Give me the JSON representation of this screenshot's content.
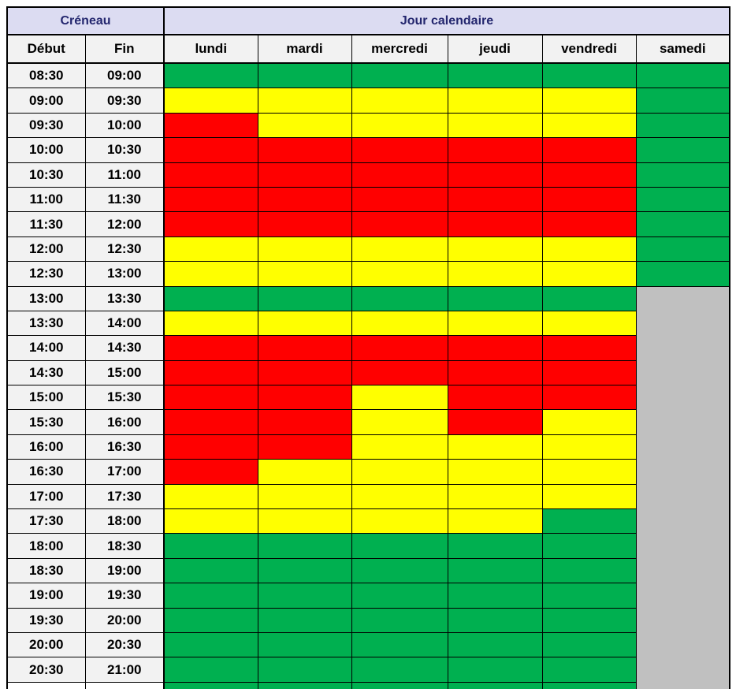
{
  "header": {
    "creneau": "Créneau",
    "jour": "Jour calendaire"
  },
  "subheader": {
    "debut": "Début",
    "fin": "Fin"
  },
  "palette": {
    "header_bg": "#dcdcf2",
    "label_bg": "#f2f2f2",
    "title_text": "#23266e",
    "text": "#000000",
    "border": "#000000"
  },
  "chart_data": {
    "type": "heatmap",
    "title": "Jour calendaire / Créneau availability grid",
    "x_categories": [
      "lundi",
      "mardi",
      "mercredi",
      "jeudi",
      "vendredi",
      "samedi"
    ],
    "y_slots": [
      {
        "debut": "08:30",
        "fin": "09:00"
      },
      {
        "debut": "09:00",
        "fin": "09:30"
      },
      {
        "debut": "09:30",
        "fin": "10:00"
      },
      {
        "debut": "10:00",
        "fin": "10:30"
      },
      {
        "debut": "10:30",
        "fin": "11:00"
      },
      {
        "debut": "11:00",
        "fin": "11:30"
      },
      {
        "debut": "11:30",
        "fin": "12:00"
      },
      {
        "debut": "12:00",
        "fin": "12:30"
      },
      {
        "debut": "12:30",
        "fin": "13:00"
      },
      {
        "debut": "13:00",
        "fin": "13:30"
      },
      {
        "debut": "13:30",
        "fin": "14:00"
      },
      {
        "debut": "14:00",
        "fin": "14:30"
      },
      {
        "debut": "14:30",
        "fin": "15:00"
      },
      {
        "debut": "15:00",
        "fin": "15:30"
      },
      {
        "debut": "15:30",
        "fin": "16:00"
      },
      {
        "debut": "16:00",
        "fin": "16:30"
      },
      {
        "debut": "16:30",
        "fin": "17:00"
      },
      {
        "debut": "17:00",
        "fin": "17:30"
      },
      {
        "debut": "17:30",
        "fin": "18:00"
      },
      {
        "debut": "18:00",
        "fin": "18:30"
      },
      {
        "debut": "18:30",
        "fin": "19:00"
      },
      {
        "debut": "19:00",
        "fin": "19:30"
      },
      {
        "debut": "19:30",
        "fin": "20:00"
      },
      {
        "debut": "20:00",
        "fin": "20:30"
      },
      {
        "debut": "20:30",
        "fin": "21:00"
      }
    ],
    "grid": [
      [
        "G",
        "G",
        "G",
        "G",
        "G",
        "G"
      ],
      [
        "Y",
        "Y",
        "Y",
        "Y",
        "Y",
        "G"
      ],
      [
        "R",
        "Y",
        "Y",
        "Y",
        "Y",
        "G"
      ],
      [
        "R",
        "R",
        "R",
        "R",
        "R",
        "G"
      ],
      [
        "R",
        "R",
        "R",
        "R",
        "R",
        "G"
      ],
      [
        "R",
        "R",
        "R",
        "R",
        "R",
        "G"
      ],
      [
        "R",
        "R",
        "R",
        "R",
        "R",
        "G"
      ],
      [
        "Y",
        "Y",
        "Y",
        "Y",
        "Y",
        "G"
      ],
      [
        "Y",
        "Y",
        "Y",
        "Y",
        "Y",
        "G"
      ],
      [
        "G",
        "G",
        "G",
        "G",
        "G",
        "X"
      ],
      [
        "Y",
        "Y",
        "Y",
        "Y",
        "Y",
        "X"
      ],
      [
        "R",
        "R",
        "R",
        "R",
        "R",
        "X"
      ],
      [
        "R",
        "R",
        "R",
        "R",
        "R",
        "X"
      ],
      [
        "R",
        "R",
        "Y",
        "R",
        "R",
        "X"
      ],
      [
        "R",
        "R",
        "Y",
        "R",
        "Y",
        "X"
      ],
      [
        "R",
        "R",
        "Y",
        "Y",
        "Y",
        "X"
      ],
      [
        "R",
        "Y",
        "Y",
        "Y",
        "Y",
        "X"
      ],
      [
        "Y",
        "Y",
        "Y",
        "Y",
        "Y",
        "X"
      ],
      [
        "Y",
        "Y",
        "Y",
        "Y",
        "G",
        "X"
      ],
      [
        "G",
        "G",
        "G",
        "G",
        "G",
        "X"
      ],
      [
        "G",
        "G",
        "G",
        "G",
        "G",
        "X"
      ],
      [
        "G",
        "G",
        "G",
        "G",
        "G",
        "X"
      ],
      [
        "G",
        "G",
        "G",
        "G",
        "G",
        "X"
      ],
      [
        "G",
        "G",
        "G",
        "G",
        "G",
        "X"
      ],
      [
        "G",
        "G",
        "G",
        "G",
        "G",
        "X"
      ]
    ],
    "legend": {
      "G": "#00b050",
      "Y": "#ffff00",
      "R": "#ff0000",
      "X": "#c0c0c0"
    },
    "grid_lines": true,
    "notes": "X cells (samedi from 13:00 down) form one continuous grey block without inner grid lines; bottom row of grid is clipped by the image edge"
  },
  "partial_row": {
    "cells": [
      "G",
      "G",
      "G",
      "G",
      "G",
      "X"
    ]
  }
}
